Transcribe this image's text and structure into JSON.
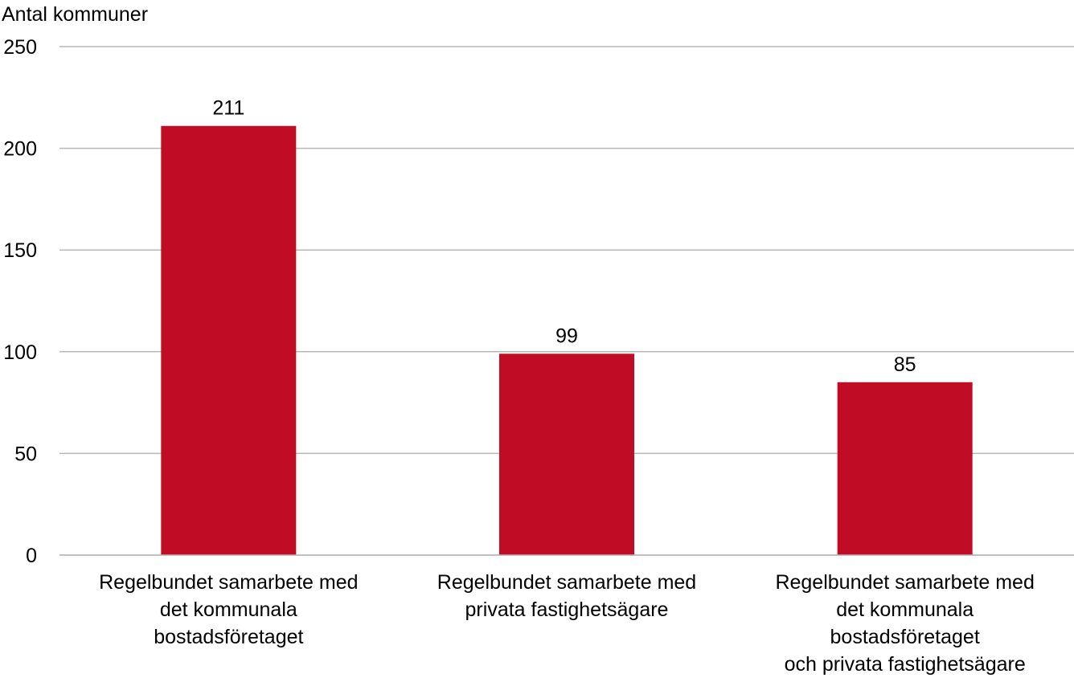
{
  "chart_data": {
    "type": "bar",
    "ylabel": "Antal kommuner",
    "xlabel": "",
    "title": "",
    "ylim": [
      0,
      250
    ],
    "yticks": [
      0,
      50,
      100,
      150,
      200,
      250
    ],
    "grid": true,
    "legend": "none",
    "categories": [
      [
        "Regelbundet samarbete med",
        "det kommunala",
        "bostadsföretaget"
      ],
      [
        "Regelbundet samarbete med",
        "privata fastighetsägare"
      ],
      [
        "Regelbundet samarbete med",
        "det kommunala",
        "bostadsföretaget",
        "och privata fastighetsägare"
      ]
    ],
    "values": [
      211,
      99,
      85
    ],
    "data_labels": [
      "211",
      "99",
      "85"
    ],
    "colors": {
      "bar": "#c00d25",
      "grid": "#b7b7b7"
    }
  }
}
